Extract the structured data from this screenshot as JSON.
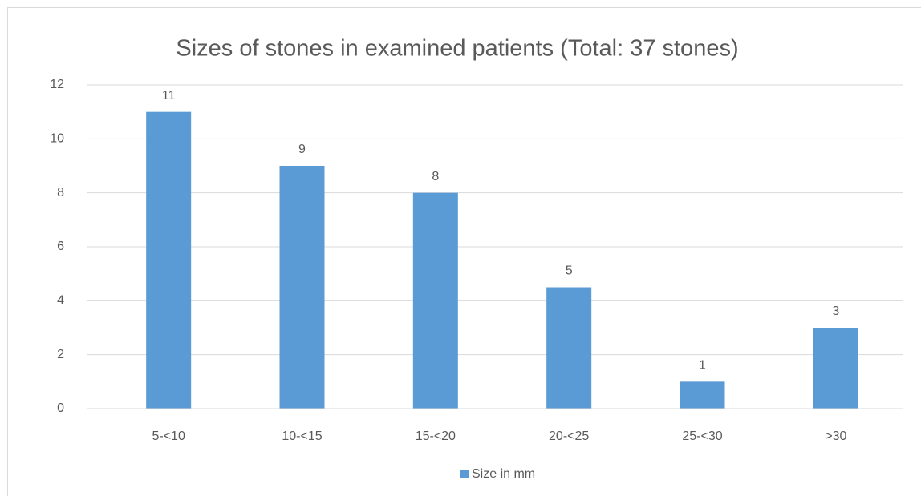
{
  "chart_data": {
    "type": "bar",
    "title": "Sizes of stones in examined patients (Total: 37 stones)",
    "categories": [
      "5-<10",
      "10-<15",
      "15-<20",
      "20-<25",
      "25-<30",
      ">30"
    ],
    "series": [
      {
        "name": "Size in mm",
        "color": "#5b9bd5",
        "values": [
          11,
          9,
          8,
          4.5,
          1,
          3
        ],
        "value_labels": [
          "11",
          "9",
          "8",
          "5",
          "1",
          "3"
        ]
      }
    ],
    "ylim": [
      0,
      12
    ],
    "yticks": [
      0,
      2,
      4,
      6,
      8,
      10,
      12
    ],
    "grid": true,
    "legend": "bottom"
  }
}
